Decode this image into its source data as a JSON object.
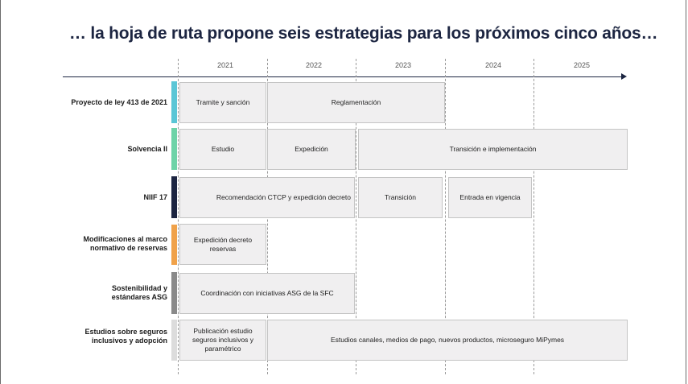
{
  "title": "… la hoja de ruta propone seis estrategias para los próximos cinco años…",
  "years": [
    "2021",
    "2022",
    "2023",
    "2024",
    "2025"
  ],
  "rows": [
    {
      "label": "Proyecto de ley 413 de 2021",
      "color": "#5bc6d6",
      "cells": [
        "Tramite y sanción",
        "Reglamentación"
      ]
    },
    {
      "label": "Solvencia II",
      "color": "#6fd3a8",
      "cells": [
        "Estudio",
        "Expedición",
        "Transición e implementación"
      ]
    },
    {
      "label": "NIIF 17",
      "color": "#1c2541",
      "cells": [
        "Recomendación CTCP y expedición decreto",
        "Transición",
        "Entrada en vigencia"
      ]
    },
    {
      "label": "Modificaciones al marco normativo de reservas",
      "color": "#f0a24a",
      "cells": [
        "Expedición decreto reservas"
      ]
    },
    {
      "label": "Sostenibilidad y estándares ASG",
      "color": "#8a8a8a",
      "cells": [
        "Coordinación con iniciativas ASG de la SFC"
      ]
    },
    {
      "label": "Estudios sobre seguros inclusivos y adopción",
      "color": "#dcdcdc",
      "cells": [
        "Publicación estudio seguros inclusivos y paramétrico",
        "Estudios canales, medios de pago, nuevos productos, microseguro MiPymes"
      ]
    }
  ]
}
